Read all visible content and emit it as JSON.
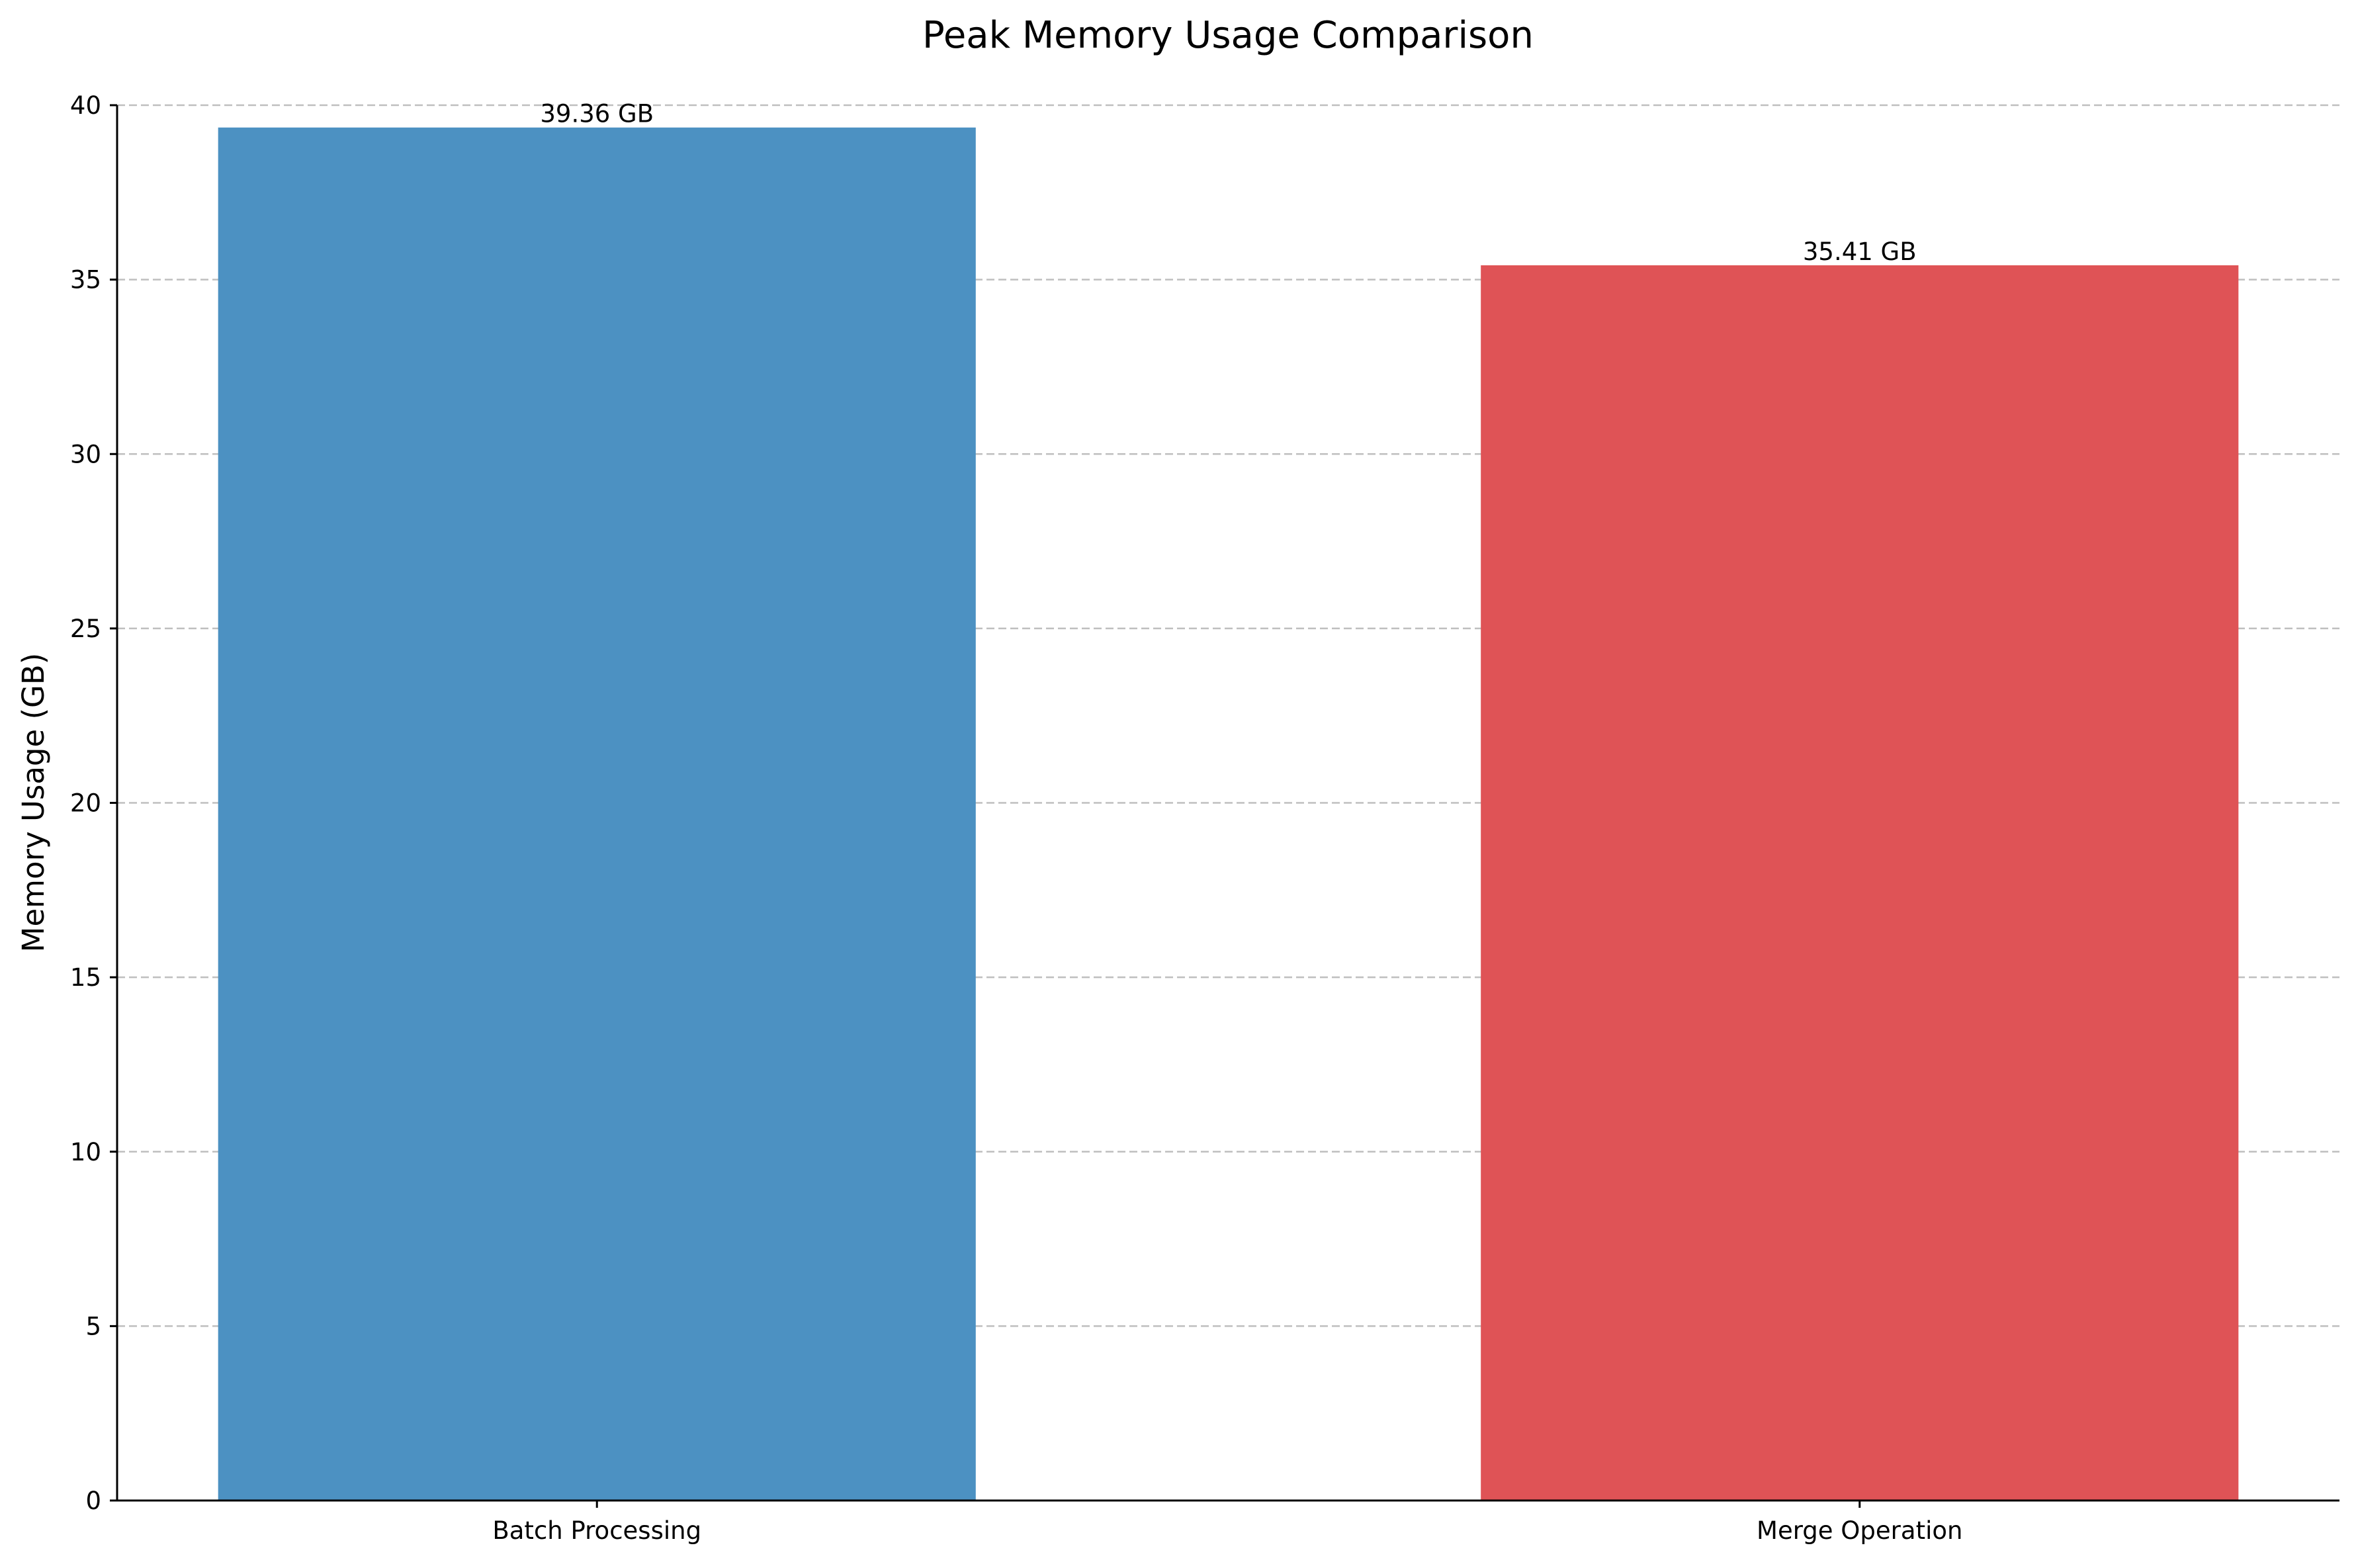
{
  "chart_data": {
    "type": "bar",
    "title": "Peak Memory Usage Comparison",
    "xlabel": "",
    "ylabel": "Memory Usage (GB)",
    "categories": [
      "Batch Processing",
      "Merge Operation"
    ],
    "values": [
      39.36,
      35.41
    ],
    "data_labels": [
      "39.36 GB",
      "35.41 GB"
    ],
    "colors": [
      "#4c91c2",
      "#df5356"
    ],
    "ylim": [
      0,
      40
    ],
    "yticks": [
      0,
      5,
      10,
      15,
      20,
      25,
      30,
      35,
      40
    ],
    "grid": "y-dashed",
    "legend": "none"
  }
}
